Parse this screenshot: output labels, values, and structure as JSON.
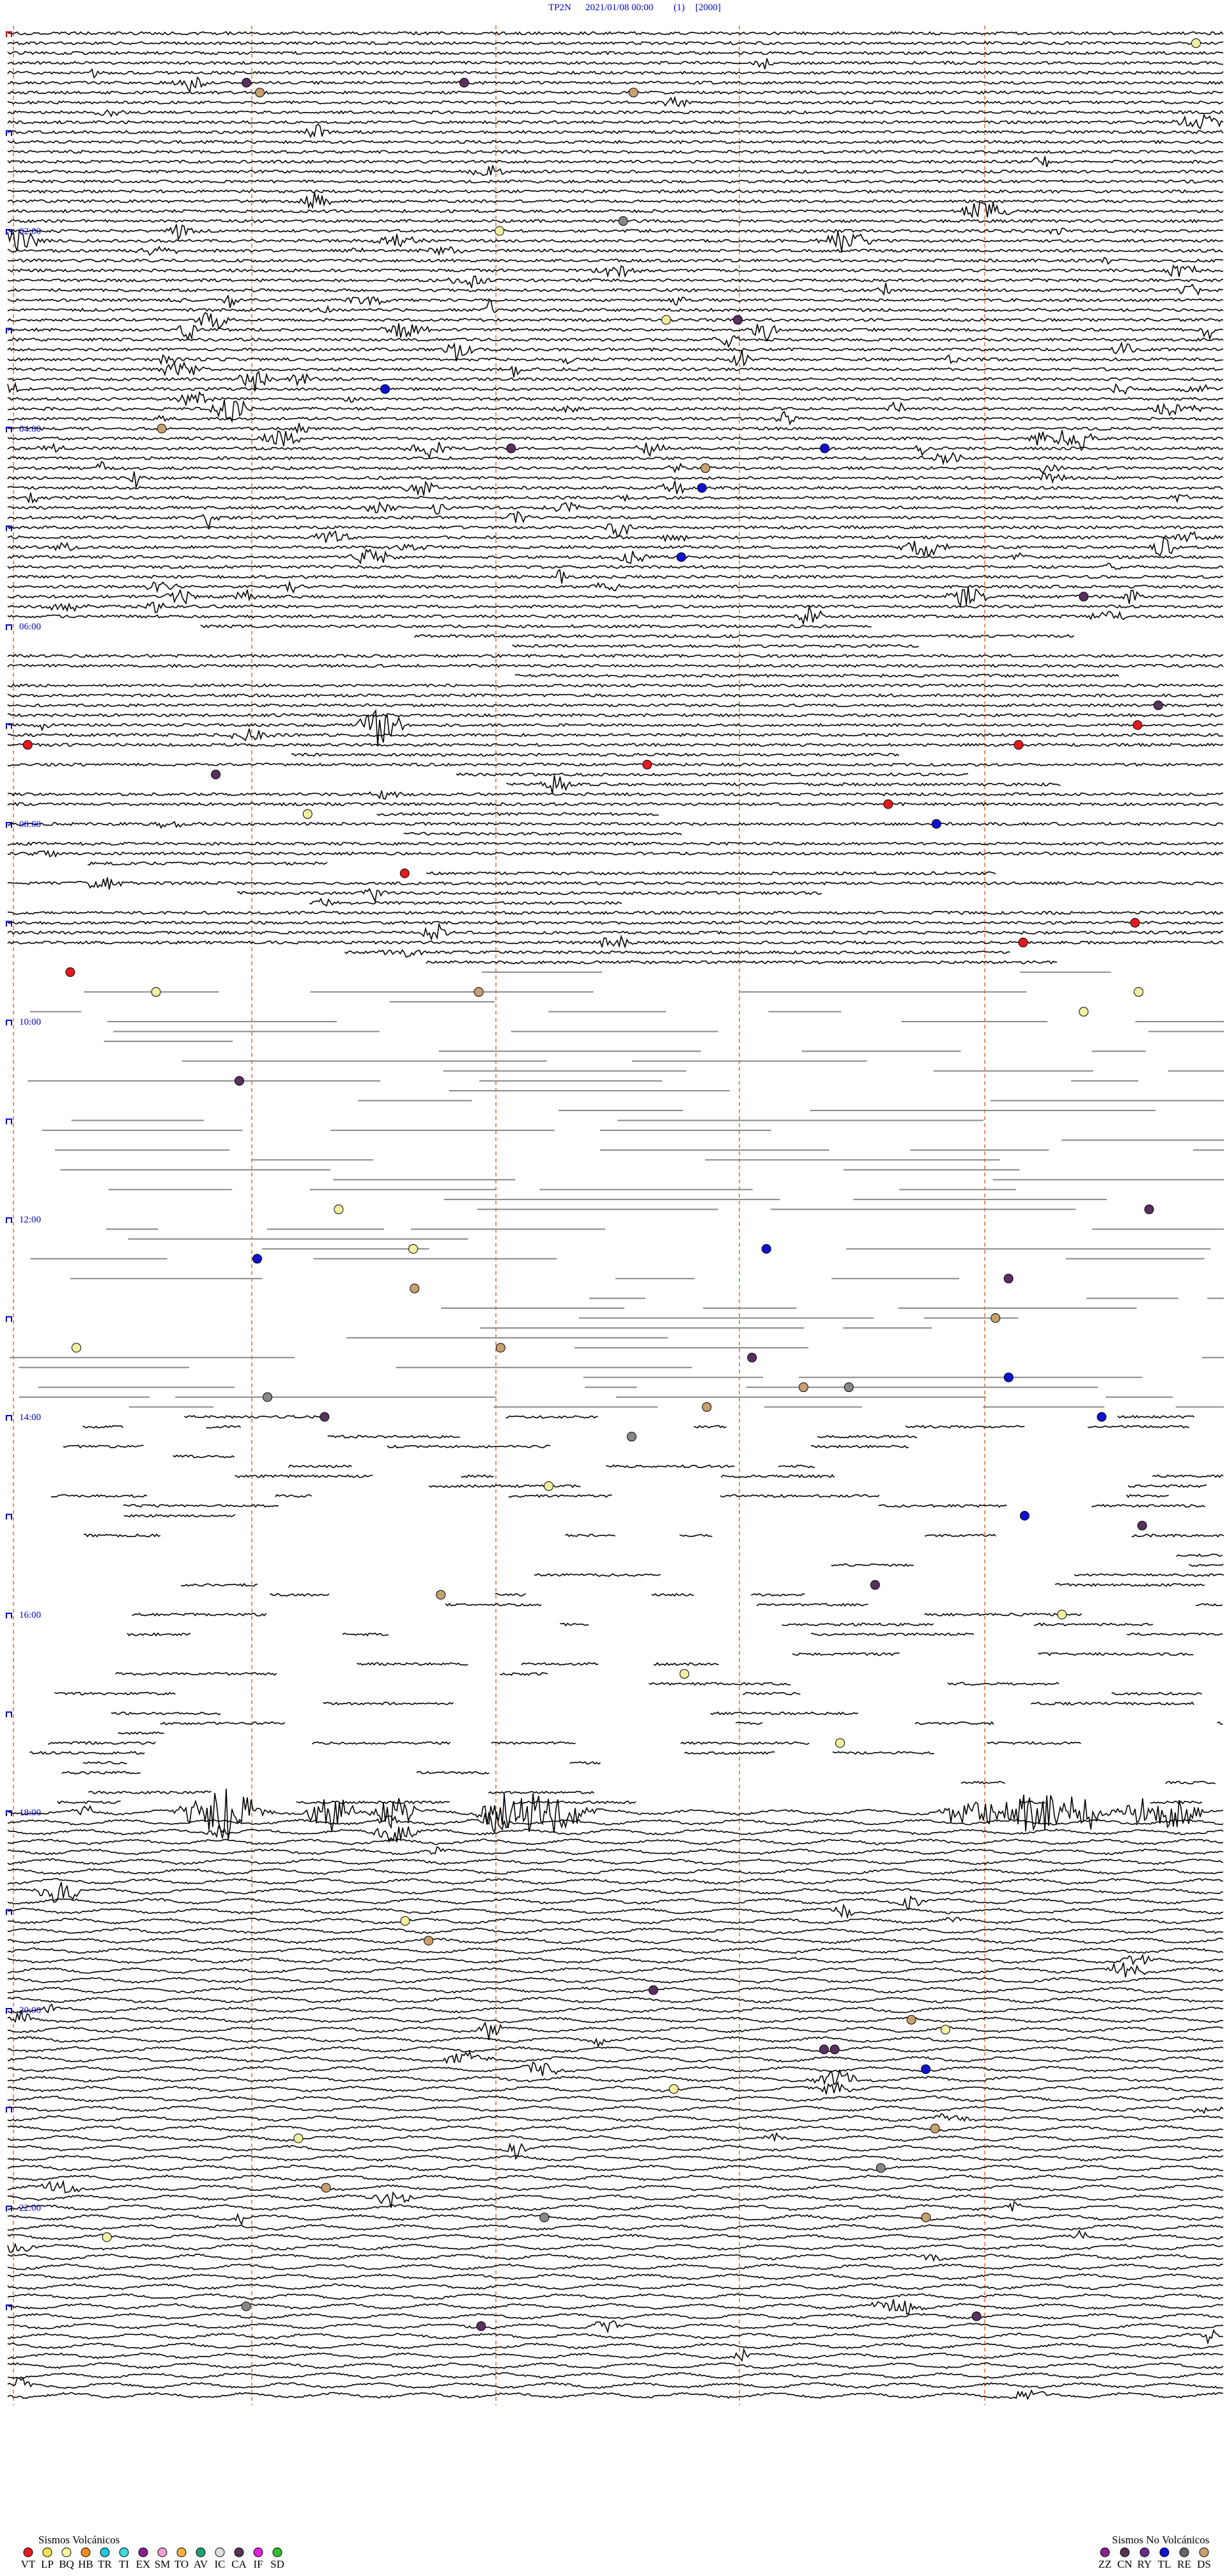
{
  "header": {
    "station": "TP2N",
    "datetime": "2021/01/08 00:00",
    "channel": "(1)",
    "gain": "[2000]"
  },
  "time_labels": [
    "02:00",
    "04:00",
    "06:00",
    "08:00",
    "10:00",
    "12:00",
    "14:00",
    "16:00",
    "18:00",
    "20:00",
    "22:00"
  ],
  "legend_volcanic": {
    "title": "Sismos Volcánicos",
    "items": [
      "VT",
      "LP",
      "BQ",
      "HB",
      "TR",
      "TI",
      "EX",
      "SM",
      "TO",
      "AV",
      "IC",
      "CA",
      "IF",
      "SD"
    ]
  },
  "legend_non_volcanic": {
    "title": "Sismos No Volcánicos",
    "items": [
      "ZZ",
      "CN",
      "RY",
      "TL",
      "RE",
      "DS"
    ]
  }
}
